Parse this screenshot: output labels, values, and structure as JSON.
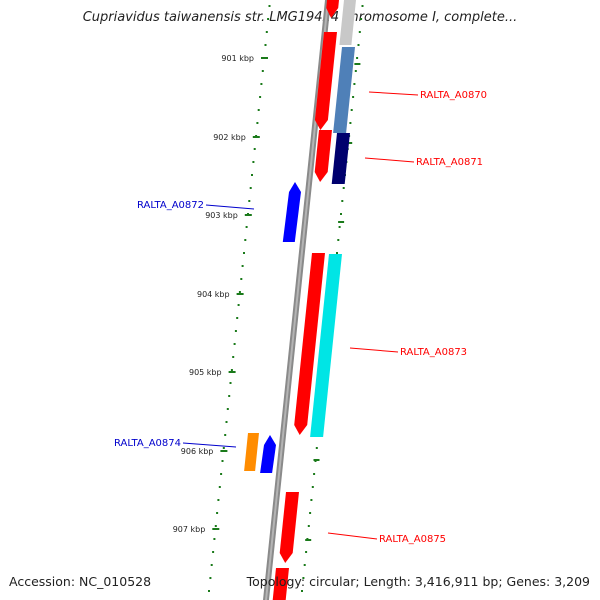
{
  "title": "Cupriavidus taiwanensis str. LMG19424 chromosome I, complete...",
  "footer": {
    "accession": "Accession: NC_010528",
    "topology": "Topology: circular; Length: 3,416,911 bp; Genes: 3,209"
  },
  "ticks": [
    "901 kbp",
    "902 kbp",
    "903 kbp",
    "904 kbp",
    "905 kbp",
    "906 kbp",
    "907 kbp"
  ],
  "genes": [
    {
      "name": "RALTA_A0870",
      "color": "#ff0000"
    },
    {
      "name": "RALTA_A0871",
      "color": "#ff0000"
    },
    {
      "name": "RALTA_A0872",
      "color": "#0000cc"
    },
    {
      "name": "RALTA_A0873",
      "color": "#ff0000"
    },
    {
      "name": "RALTA_A0874",
      "color": "#0000cc"
    },
    {
      "name": "RALTA_A0875",
      "color": "#ff0000"
    }
  ],
  "colors": {
    "backbone": "#8a8a8a",
    "tick": "#1a7a1a",
    "forward_gene": "#ff0000",
    "reverse_gene": "#0000ff",
    "cds_cyan": "#00e5e5",
    "cds_steelblue": "#4f80b8",
    "cds_navy": "#00006e",
    "cds_orange": "#ff8c00",
    "cds_gray": "#c8c8c8"
  }
}
